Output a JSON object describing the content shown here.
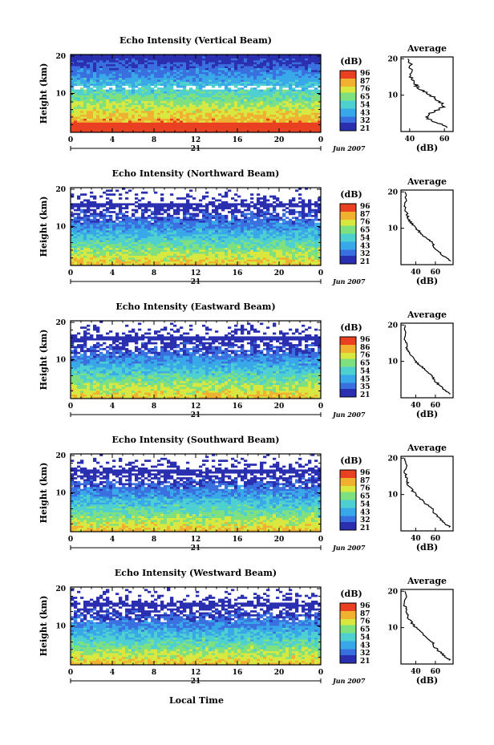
{
  "chart_data": [
    {
      "type": "heatmap",
      "title": "Echo Intensity (Vertical Beam)",
      "ylabel": "Height (km)",
      "y_ticks": [
        "20",
        "10"
      ],
      "x_ticks": [
        "0",
        "4",
        "8",
        "12",
        "16",
        "20",
        "0"
      ],
      "date_tick": "21",
      "date_label": "Jun 2007",
      "colorbar_title": "(dB)",
      "colorbar_ticks": [
        "96",
        "87",
        "76",
        "65",
        "54",
        "43",
        "32",
        "21"
      ],
      "avg_title": "Average",
      "avg_xlabel": "(dB)",
      "avg_x_ticks": [
        "40",
        "60"
      ],
      "avg_y_ticks": [
        "20",
        "10"
      ],
      "profile": {
        "x": [
          62,
          58,
          52,
          50,
          52,
          56,
          60,
          58,
          55,
          52,
          48,
          45,
          43,
          42,
          41,
          40,
          41,
          39
        ],
        "y": [
          1,
          2,
          3,
          4,
          5,
          6,
          7,
          8,
          9,
          10,
          11,
          12,
          13,
          14,
          15,
          16,
          18,
          20
        ]
      }
    },
    {
      "type": "heatmap",
      "title": "Echo Intensity (Northward Beam)",
      "ylabel": "Height (km)",
      "y_ticks": [
        "20",
        "10"
      ],
      "x_ticks": [
        "0",
        "4",
        "8",
        "12",
        "16",
        "20",
        "0"
      ],
      "date_tick": "21",
      "date_label": "Jun 2007",
      "colorbar_title": "(dB)",
      "colorbar_ticks": [
        "96",
        "87",
        "76",
        "65",
        "54",
        "43",
        "32",
        "21"
      ],
      "avg_title": "Average",
      "avg_xlabel": "(dB)",
      "avg_x_ticks": [
        "40",
        "60"
      ],
      "avg_y_ticks": [
        "20",
        "10"
      ],
      "profile": {
        "x": [
          75,
          70,
          66,
          62,
          58,
          57,
          52,
          48,
          44,
          40,
          37,
          34,
          32,
          31,
          30,
          29,
          30,
          29
        ],
        "y": [
          1,
          2,
          3,
          4,
          5,
          6,
          7,
          8,
          9,
          10,
          11,
          12,
          13,
          14,
          15,
          16,
          18,
          20
        ]
      }
    },
    {
      "type": "heatmap",
      "title": "Echo Intensity (Eastward Beam)",
      "ylabel": "Height (km)",
      "y_ticks": [
        "20",
        "10"
      ],
      "x_ticks": [
        "0",
        "4",
        "8",
        "12",
        "16",
        "20",
        "0"
      ],
      "date_tick": "21",
      "date_label": "Jun 2007",
      "colorbar_title": "(dB)",
      "colorbar_ticks": [
        "96",
        "86",
        "76",
        "65",
        "54",
        "45",
        "35",
        "21"
      ],
      "avg_title": "Average",
      "avg_xlabel": "(dB)",
      "avg_x_ticks": [
        "40",
        "60"
      ],
      "avg_y_ticks": [
        "20",
        "10"
      ],
      "profile": {
        "x": [
          75,
          70,
          66,
          62,
          58,
          57,
          52,
          48,
          44,
          40,
          37,
          34,
          32,
          31,
          30,
          29,
          30,
          29
        ],
        "y": [
          1,
          2,
          3,
          4,
          5,
          6,
          7,
          8,
          9,
          10,
          11,
          12,
          13,
          14,
          15,
          16,
          18,
          20
        ]
      }
    },
    {
      "type": "heatmap",
      "title": "Echo Intensity (Southward Beam)",
      "ylabel": "Height (km)",
      "y_ticks": [
        "20",
        "10"
      ],
      "x_ticks": [
        "0",
        "4",
        "8",
        "12",
        "16",
        "20",
        "0"
      ],
      "date_tick": "21",
      "date_label": "Jun 2007",
      "colorbar_title": "(dB)",
      "colorbar_ticks": [
        "96",
        "87",
        "76",
        "65",
        "54",
        "43",
        "32",
        "21"
      ],
      "avg_title": "Average",
      "avg_xlabel": "(dB)",
      "avg_x_ticks": [
        "40",
        "60"
      ],
      "avg_y_ticks": [
        "20",
        "10"
      ],
      "profile": {
        "x": [
          75,
          70,
          66,
          62,
          58,
          57,
          52,
          48,
          44,
          40,
          37,
          34,
          32,
          31,
          30,
          29,
          30,
          29
        ],
        "y": [
          1,
          2,
          3,
          4,
          5,
          6,
          7,
          8,
          9,
          10,
          11,
          12,
          13,
          14,
          15,
          16,
          18,
          20
        ]
      }
    },
    {
      "type": "heatmap",
      "title": "Echo Intensity (Westward Beam)",
      "ylabel": "Height (km)",
      "y_ticks": [
        "20",
        "10"
      ],
      "x_ticks": [
        "0",
        "4",
        "8",
        "12",
        "16",
        "20",
        "0"
      ],
      "date_tick": "21",
      "date_label": "Jun 2007",
      "colorbar_title": "(dB)",
      "colorbar_ticks": [
        "96",
        "87",
        "76",
        "65",
        "54",
        "43",
        "32",
        "21"
      ],
      "avg_title": "Average",
      "avg_xlabel": "(dB)",
      "avg_x_ticks": [
        "40",
        "60"
      ],
      "avg_y_ticks": [
        "20",
        "10"
      ],
      "profile": {
        "x": [
          75,
          70,
          66,
          62,
          58,
          57,
          52,
          48,
          44,
          40,
          37,
          34,
          32,
          31,
          30,
          29,
          30,
          29
        ],
        "y": [
          1,
          2,
          3,
          4,
          5,
          6,
          7,
          8,
          9,
          10,
          11,
          12,
          13,
          14,
          15,
          16,
          18,
          20
        ]
      }
    }
  ],
  "footer": {
    "xlabel": "Local Time"
  },
  "colors": {
    "colormap": [
      "#2a2fb0",
      "#3a6fe0",
      "#39a8e8",
      "#4fd0d0",
      "#7fe07f",
      "#d8e840",
      "#f0b030",
      "#e84020"
    ]
  }
}
